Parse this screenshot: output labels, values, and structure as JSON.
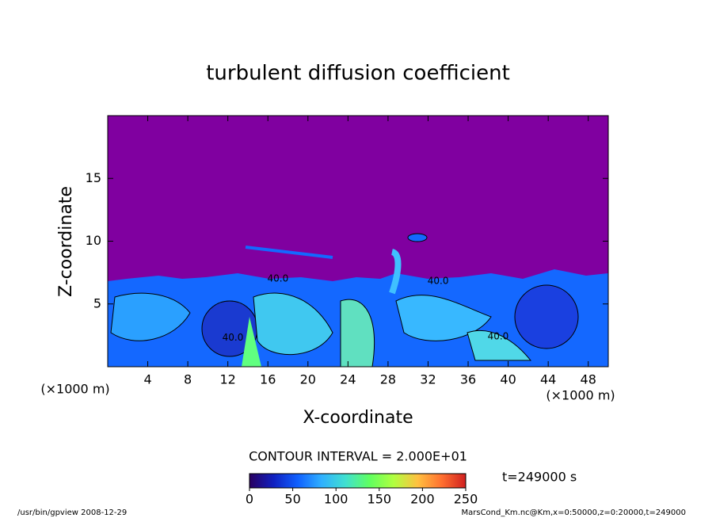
{
  "chart_data": {
    "type": "contour",
    "title": "turbulent diffusion coefficient",
    "xlabel": "X-coordinate",
    "ylabel": "Z-coordinate",
    "x_unit": "(×1000 m)",
    "y_unit": "(×1000 m)",
    "xlim": [
      0,
      50
    ],
    "xticks": [
      4,
      8,
      12,
      16,
      20,
      24,
      28,
      32,
      36,
      40,
      44,
      48
    ],
    "ylim": [
      0,
      20
    ],
    "yticks": [
      5,
      10,
      15
    ],
    "contour_interval": "CONTOUR INTERVAL = 2.000E+01",
    "contour_labels": [
      {
        "x": 17,
        "z": 7,
        "label": "40.0"
      },
      {
        "x": 33,
        "z": 6.8,
        "label": "40.0"
      },
      {
        "x": 12.5,
        "z": 2.3,
        "label": "40.0"
      },
      {
        "x": 39,
        "z": 2.4,
        "label": "40.0"
      }
    ],
    "background_color": "#8000a0",
    "colorbar": {
      "lim": [
        0,
        250
      ],
      "ticks": [
        0,
        50,
        100,
        150,
        200,
        250
      ],
      "colors": [
        "#2a0060",
        "#1020c0",
        "#1060ff",
        "#30b0ff",
        "#40e0d0",
        "#60ff60",
        "#b0ff40",
        "#ffc040",
        "#ff7030",
        "#d02020"
      ]
    },
    "time_label": "t=249000 s",
    "footer_left": "/usr/bin/gpview   2008-12-29",
    "footer_right": "MarsCond_Km.nc@Km,x=0:50000,z=0:20000,t=249000"
  }
}
